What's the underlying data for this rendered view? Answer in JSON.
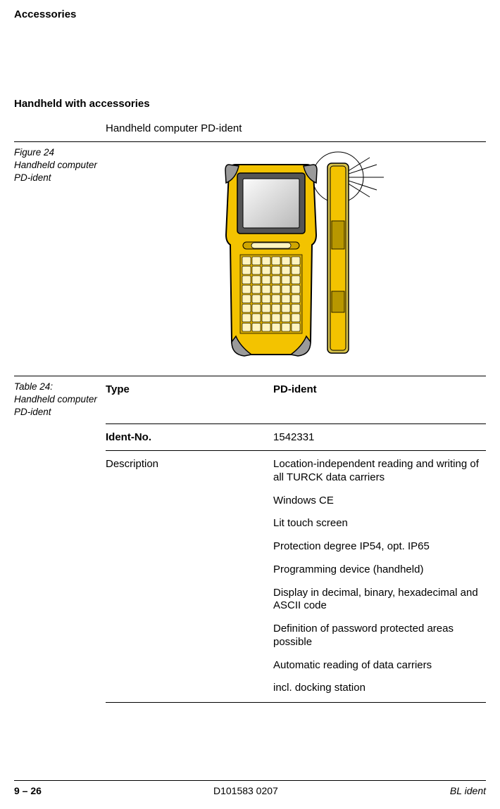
{
  "header": {
    "title": "Accessories"
  },
  "section": {
    "title": "Handheld with accessories",
    "subtitle": "Handheld computer PD-ident"
  },
  "figure": {
    "label": "Figure 24\nHandheld computer PD-ident"
  },
  "device_colors": {
    "body": "#f3c300",
    "body_stroke": "#000000",
    "corner": "#9a9a9a",
    "screen_fill": "#e0e0e0",
    "screen_stroke": "#000000",
    "key_fill": "#fff4c0",
    "side_fill": "#d6c24a"
  },
  "table": {
    "caption": "Table 24:\nHandheld computer PD-ident",
    "head": {
      "c1": "Type",
      "c2": "PD-ident"
    },
    "rows": [
      {
        "c1_bold": true,
        "c1": "Ident-No.",
        "c2_text": "1542331"
      },
      {
        "c1_bold": false,
        "c1": "Description",
        "items": [
          "Location-independent reading and writing of all TURCK data carriers",
          "Windows CE",
          "Lit touch screen",
          "Protection degree IP54, opt. IP65",
          "Programming device (handheld)",
          "Display in decimal, binary, hexadecimal and ASCII code",
          "Definition of password protected areas possible",
          "Automatic reading of data carriers",
          "incl. docking station"
        ]
      }
    ]
  },
  "footer": {
    "page": "9 – 26",
    "doc": "D101583 0207",
    "product": "BL ident"
  }
}
